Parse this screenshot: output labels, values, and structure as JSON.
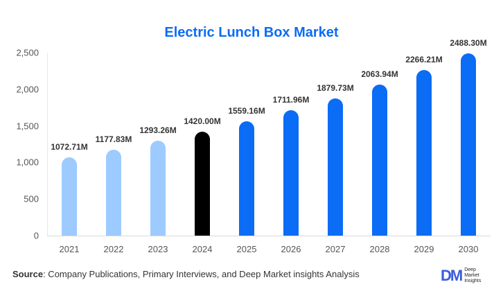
{
  "title": "Electric Lunch Box Market",
  "source_label": "Source",
  "source_text": ": Company Publications, Primary Interviews, and Deep Market insights Analysis",
  "logo": {
    "mark": "DM",
    "line1": "Deep",
    "line2": "Market",
    "line3": "Insights"
  },
  "colors": {
    "historical": "#9ecbff",
    "base_year": "#000000",
    "forecast": "#0b6cf5",
    "title": "#0b6cf5"
  },
  "chart_data": {
    "type": "bar",
    "title": "Electric Lunch Box Market",
    "xlabel": "",
    "ylabel": "",
    "categories": [
      "2021",
      "2022",
      "2023",
      "2024",
      "2025",
      "2026",
      "2027",
      "2028",
      "2029",
      "2030"
    ],
    "values": [
      1072.71,
      1177.83,
      1293.26,
      1420.0,
      1559.16,
      1711.96,
      1879.73,
      2063.94,
      2266.21,
      2488.3
    ],
    "labels": [
      "1072.71M",
      "1177.83M",
      "1293.26M",
      "1420.00M",
      "1559.16M",
      "1711.96M",
      "1879.73M",
      "2063.94M",
      "2266.21M",
      "2488.30M"
    ],
    "bar_colors": [
      "#9ecbff",
      "#9ecbff",
      "#9ecbff",
      "#000000",
      "#0b6cf5",
      "#0b6cf5",
      "#0b6cf5",
      "#0b6cf5",
      "#0b6cf5",
      "#0b6cf5"
    ],
    "yticks": [
      "0",
      "500",
      "1,000",
      "1,500",
      "2,000",
      "2,500"
    ],
    "ylim": [
      0,
      2500
    ],
    "grid": false,
    "legend": null
  }
}
